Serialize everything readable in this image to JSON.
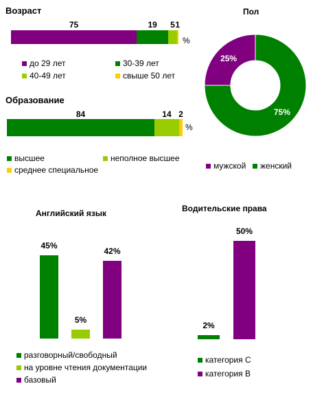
{
  "colors": {
    "purple": "#800080",
    "green": "#008000",
    "light_green": "#99cc00",
    "yellow": "#ffcc00"
  },
  "unit_percent": "%",
  "chart_data": [
    {
      "type": "bar",
      "orientation": "horizontal-stacked",
      "title": "Возраст",
      "series": [
        {
          "name": "до 29 лет",
          "value": 75,
          "color": "#800080"
        },
        {
          "name": "30-39 лет",
          "value": 19,
          "color": "#008000"
        },
        {
          "name": "40-49 лет",
          "value": 5,
          "color": "#99cc00"
        },
        {
          "name": "свыше 50 лет",
          "value": 1,
          "color": "#ffcc00"
        }
      ],
      "labels": [
        "75",
        "19",
        "5",
        "1"
      ],
      "unit": "%"
    },
    {
      "type": "bar",
      "orientation": "horizontal-stacked",
      "title": "Образование",
      "series": [
        {
          "name": "высшее",
          "value": 84,
          "color": "#008000"
        },
        {
          "name": "неполное высшее",
          "value": 14,
          "color": "#99cc00"
        },
        {
          "name": "среднее специальное",
          "value": 2,
          "color": "#ffcc00"
        }
      ],
      "labels": [
        "84",
        "14",
        "2"
      ],
      "unit": "%"
    },
    {
      "type": "pie",
      "variant": "doughnut",
      "title": "Пол",
      "series": [
        {
          "name": "мужской",
          "value": 25,
          "label": "25%",
          "color": "#800080"
        },
        {
          "name": "женский",
          "value": 75,
          "label": "75%",
          "color": "#008000"
        }
      ]
    },
    {
      "type": "bar",
      "title": "Английский язык",
      "ylim": [
        0,
        50
      ],
      "series": [
        {
          "name": "разговорный/свободный",
          "value": 45,
          "label": "45%",
          "color": "#008000"
        },
        {
          "name": "на уровне чтения документации",
          "value": 5,
          "label": "5%",
          "color": "#99cc00"
        },
        {
          "name": "базовый",
          "value": 42,
          "label": "42%",
          "color": "#800080"
        }
      ]
    },
    {
      "type": "bar",
      "title": "Водительские права",
      "ylim": [
        0,
        50
      ],
      "series": [
        {
          "name": "категория С",
          "value": 2,
          "label": "2%",
          "color": "#008000"
        },
        {
          "name": "категория В",
          "value": 50,
          "label": "50%",
          "color": "#800080"
        }
      ]
    }
  ]
}
